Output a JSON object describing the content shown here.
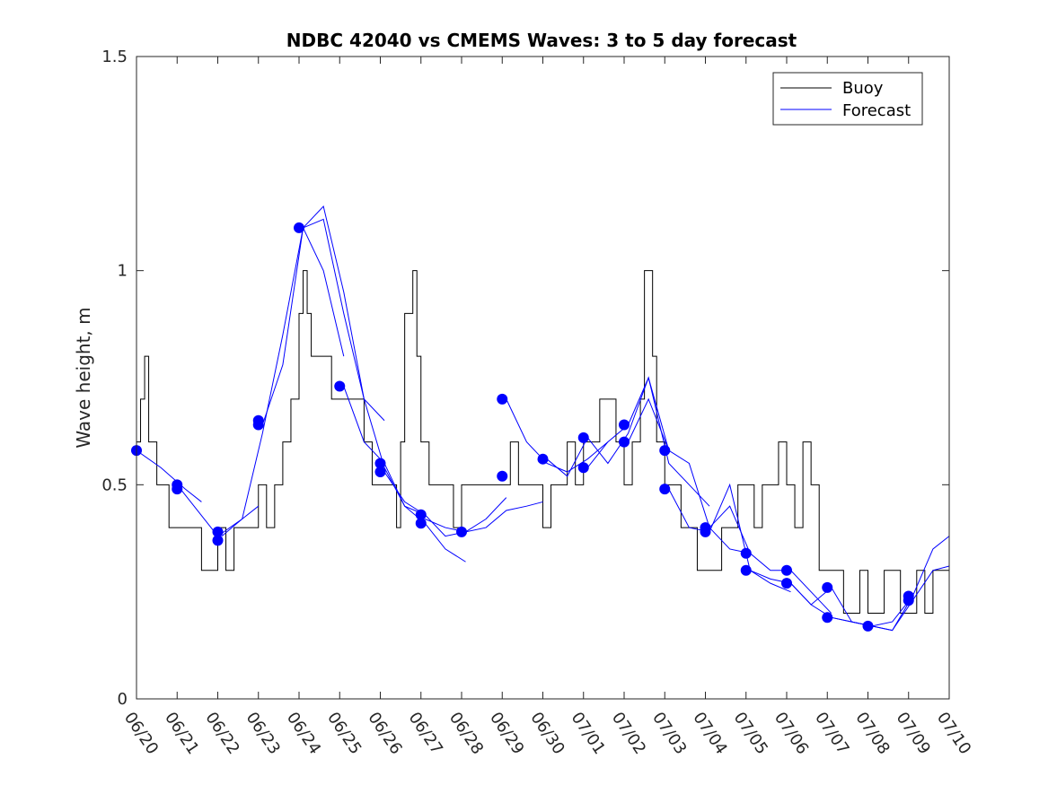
{
  "chart_data": {
    "type": "line",
    "title": "NDBC 42040 vs CMEMS Waves: 3 to 5 day forecast",
    "xlabel": "",
    "ylabel": "Wave height, m",
    "xlim": [
      "06/20",
      "07/10"
    ],
    "ylim": [
      0,
      1.5
    ],
    "x_ticks": [
      "06/20",
      "06/21",
      "06/22",
      "06/23",
      "06/24",
      "06/25",
      "06/26",
      "06/27",
      "06/28",
      "06/29",
      "06/30",
      "07/01",
      "07/02",
      "07/03",
      "07/04",
      "07/05",
      "07/06",
      "07/07",
      "07/08",
      "07/09",
      "07/10"
    ],
    "y_ticks": [
      0,
      0.5,
      1,
      1.5
    ],
    "y_tick_labels": [
      "0",
      "0.5",
      "1",
      "1.5"
    ],
    "grid": false,
    "legend": {
      "position": "top-right",
      "entries": [
        "Buoy",
        "Forecast"
      ]
    },
    "colors": {
      "buoy": "#000000",
      "forecast": "#0000ff",
      "axis": "#262626"
    },
    "series": [
      {
        "name": "Buoy",
        "x_day": [
          0,
          0.1,
          0.2,
          0.3,
          0.4,
          0.5,
          0.6,
          0.8,
          1.0,
          1.2,
          1.4,
          1.6,
          1.8,
          2.0,
          2.2,
          2.4,
          2.6,
          2.8,
          3.0,
          3.2,
          3.4,
          3.6,
          3.8,
          4.0,
          4.1,
          4.2,
          4.3,
          4.4,
          4.6,
          4.8,
          5.0,
          5.2,
          5.4,
          5.6,
          5.8,
          6.0,
          6.2,
          6.4,
          6.5,
          6.6,
          6.7,
          6.8,
          6.9,
          7.0,
          7.2,
          7.4,
          7.6,
          7.8,
          8.0,
          8.2,
          8.4,
          8.6,
          8.8,
          9.0,
          9.2,
          9.4,
          9.6,
          9.8,
          10.0,
          10.2,
          10.4,
          10.6,
          10.8,
          11.0,
          11.2,
          11.4,
          11.6,
          11.8,
          12.0,
          12.2,
          12.4,
          12.5,
          12.6,
          12.7,
          12.8,
          13.0,
          13.2,
          13.4,
          13.6,
          13.8,
          14.0,
          14.2,
          14.4,
          14.6,
          14.8,
          15.0,
          15.2,
          15.4,
          15.6,
          15.8,
          16.0,
          16.2,
          16.4,
          16.6,
          16.8,
          17.0,
          17.2,
          17.4,
          17.6,
          17.8,
          18.0,
          18.2,
          18.4,
          18.6,
          18.8,
          19.0,
          19.2,
          19.4,
          19.6,
          19.8,
          20.0
        ],
        "values": [
          0.6,
          0.7,
          0.8,
          0.6,
          0.6,
          0.5,
          0.5,
          0.4,
          0.4,
          0.4,
          0.4,
          0.3,
          0.3,
          0.4,
          0.3,
          0.4,
          0.4,
          0.4,
          0.5,
          0.4,
          0.5,
          0.6,
          0.7,
          0.9,
          1.0,
          0.9,
          0.8,
          0.8,
          0.8,
          0.7,
          0.7,
          0.7,
          0.7,
          0.6,
          0.5,
          0.5,
          0.5,
          0.4,
          0.6,
          0.9,
          0.9,
          1.0,
          0.8,
          0.6,
          0.5,
          0.5,
          0.5,
          0.4,
          0.5,
          0.5,
          0.5,
          0.5,
          0.5,
          0.5,
          0.6,
          0.5,
          0.5,
          0.5,
          0.4,
          0.5,
          0.5,
          0.6,
          0.5,
          0.6,
          0.6,
          0.7,
          0.7,
          0.6,
          0.5,
          0.6,
          0.7,
          1.0,
          1.0,
          0.8,
          0.6,
          0.5,
          0.5,
          0.4,
          0.4,
          0.3,
          0.3,
          0.3,
          0.4,
          0.4,
          0.5,
          0.5,
          0.4,
          0.5,
          0.5,
          0.6,
          0.5,
          0.4,
          0.6,
          0.5,
          0.3,
          0.3,
          0.3,
          0.2,
          0.2,
          0.3,
          0.2,
          0.2,
          0.3,
          0.3,
          0.2,
          0.2,
          0.3,
          0.2,
          0.3,
          0.3,
          0.3
        ]
      },
      {
        "name": "Forecast",
        "runs": [
          {
            "x_day": [
              0,
              0.6,
              1.2,
              1.6
            ],
            "values": [
              0.58,
              0.54,
              0.49,
              0.46
            ]
          },
          {
            "x_day": [
              1.0,
              1.5,
              2.0,
              2.6,
              3.0
            ],
            "values": [
              0.5,
              0.44,
              0.38,
              0.42,
              0.45
            ]
          },
          {
            "x_day": [
              2.1,
              2.6,
              3.1,
              3.6,
              4.1,
              4.6,
              5.1
            ],
            "values": [
              0.38,
              0.42,
              0.62,
              0.85,
              1.1,
              1.0,
              0.8
            ]
          },
          {
            "x_day": [
              3.1,
              3.6,
              4.1,
              4.6,
              5.1,
              5.6,
              6.1
            ],
            "values": [
              0.64,
              0.78,
              1.1,
              1.12,
              0.9,
              0.7,
              0.65
            ]
          },
          {
            "x_day": [
              4.1,
              4.6,
              5.1,
              5.6,
              6.1,
              6.6,
              7.1
            ],
            "values": [
              1.1,
              1.15,
              0.95,
              0.7,
              0.54,
              0.45,
              0.43
            ]
          },
          {
            "x_day": [
              5.1,
              5.6,
              6.1,
              6.6,
              7.1,
              7.6,
              8.1
            ],
            "values": [
              0.73,
              0.6,
              0.55,
              0.45,
              0.41,
              0.35,
              0.32
            ]
          },
          {
            "x_day": [
              6.1,
              6.6,
              7.1,
              7.6,
              8.1,
              8.6,
              9.1
            ],
            "values": [
              0.53,
              0.46,
              0.43,
              0.38,
              0.39,
              0.42,
              0.47
            ]
          },
          {
            "x_day": [
              7.1,
              7.6,
              8.1,
              8.6,
              9.1,
              9.6,
              10.0
            ],
            "values": [
              0.42,
              0.4,
              0.39,
              0.4,
              0.44,
              0.45,
              0.46
            ]
          },
          {
            "x_day": [
              9.1,
              9.6,
              10.1,
              10.6,
              11.1,
              11.6
            ],
            "values": [
              0.7,
              0.6,
              0.55,
              0.53,
              0.56,
              0.6
            ]
          },
          {
            "x_day": [
              10.1,
              10.6,
              11.1,
              11.6,
              12.1,
              12.6,
              13.1
            ],
            "values": [
              0.56,
              0.52,
              0.61,
              0.55,
              0.62,
              0.75,
              0.58
            ]
          },
          {
            "x_day": [
              11.1,
              11.6,
              12.1,
              12.6,
              13.1,
              13.6,
              14.1
            ],
            "values": [
              0.54,
              0.6,
              0.64,
              0.75,
              0.55,
              0.5,
              0.45
            ]
          },
          {
            "x_day": [
              12.1,
              12.6,
              13.1,
              13.6,
              14.1,
              14.6,
              15.1
            ],
            "values": [
              0.6,
              0.7,
              0.58,
              0.55,
              0.4,
              0.45,
              0.34
            ]
          },
          {
            "x_day": [
              13.1,
              13.6,
              14.1,
              14.6,
              15.1,
              15.6,
              16.1
            ],
            "values": [
              0.49,
              0.4,
              0.39,
              0.5,
              0.3,
              0.27,
              0.25
            ]
          },
          {
            "x_day": [
              14.1,
              14.6,
              15.1,
              15.6,
              16.1,
              16.6,
              17.1
            ],
            "values": [
              0.4,
              0.35,
              0.34,
              0.3,
              0.3,
              0.25,
              0.2
            ]
          },
          {
            "x_day": [
              15.1,
              15.6,
              16.1,
              16.6,
              17.1,
              17.6,
              18.1
            ],
            "values": [
              0.3,
              0.28,
              0.27,
              0.22,
              0.19,
              0.18,
              0.17
            ]
          },
          {
            "x_day": [
              16.1,
              16.6,
              17.1,
              17.6,
              18.1,
              18.6,
              19.1
            ],
            "values": [
              0.27,
              0.22,
              0.26,
              0.18,
              0.17,
              0.16,
              0.24
            ]
          },
          {
            "x_day": [
              17.1,
              17.6,
              18.1,
              18.6,
              19.1,
              19.6,
              20.0
            ],
            "values": [
              0.19,
              0.18,
              0.17,
              0.18,
              0.24,
              0.35,
              0.38
            ]
          },
          {
            "x_day": [
              18.1,
              18.6,
              19.1,
              19.6,
              20.0
            ],
            "values": [
              0.17,
              0.16,
              0.23,
              0.3,
              0.31
            ]
          }
        ],
        "start_markers": {
          "x_day": [
            0.0,
            1.0,
            1.0,
            2.0,
            2.0,
            3.0,
            3.0,
            4.0,
            5.0,
            6.0,
            6.0,
            7.0,
            7.0,
            8.0,
            9.0,
            9.0,
            10.0,
            11.0,
            11.0,
            12.0,
            12.0,
            13.0,
            13.0,
            14.0,
            14.0,
            15.0,
            15.0,
            16.0,
            16.0,
            17.0,
            17.0,
            18.0,
            19.0,
            19.0
          ],
          "values": [
            0.58,
            0.5,
            0.49,
            0.39,
            0.37,
            0.65,
            0.64,
            1.1,
            0.73,
            0.55,
            0.53,
            0.43,
            0.41,
            0.39,
            0.7,
            0.52,
            0.56,
            0.61,
            0.54,
            0.64,
            0.6,
            0.58,
            0.49,
            0.4,
            0.39,
            0.34,
            0.3,
            0.3,
            0.27,
            0.26,
            0.19,
            0.17,
            0.24,
            0.23
          ]
        }
      }
    ]
  }
}
